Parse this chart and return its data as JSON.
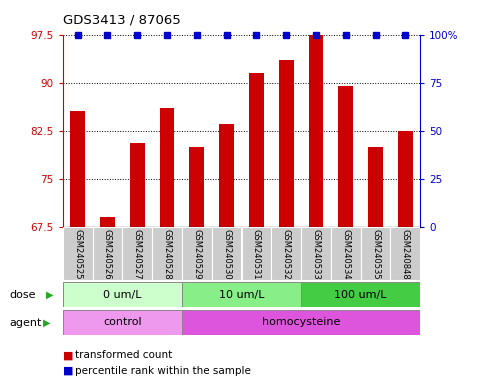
{
  "title": "GDS3413 / 87065",
  "samples": [
    "GSM240525",
    "GSM240526",
    "GSM240527",
    "GSM240528",
    "GSM240529",
    "GSM240530",
    "GSM240531",
    "GSM240532",
    "GSM240533",
    "GSM240534",
    "GSM240535",
    "GSM240848"
  ],
  "bar_values": [
    85.5,
    69.0,
    80.5,
    86.0,
    80.0,
    83.5,
    91.5,
    93.5,
    97.5,
    89.5,
    80.0,
    82.5
  ],
  "percentile_rank": [
    100,
    100,
    100,
    100,
    100,
    100,
    100,
    100,
    100,
    100,
    100,
    100
  ],
  "ylim": [
    67.5,
    97.5
  ],
  "yticks": [
    67.5,
    75.0,
    82.5,
    90.0,
    97.5
  ],
  "ytick_labels": [
    "67.5",
    "75",
    "82.5",
    "90",
    "97.5"
  ],
  "right_yticks": [
    0,
    25,
    50,
    75,
    100
  ],
  "right_ytick_labels": [
    "0",
    "25",
    "50",
    "75",
    "100%"
  ],
  "bar_color": "#cc0000",
  "dot_color": "#0000cc",
  "dose_groups": [
    {
      "label": "0 um/L",
      "start": 0,
      "end": 4,
      "color": "#ccffcc"
    },
    {
      "label": "10 um/L",
      "start": 4,
      "end": 8,
      "color": "#88ee88"
    },
    {
      "label": "100 um/L",
      "start": 8,
      "end": 12,
      "color": "#44cc44"
    }
  ],
  "agent_groups": [
    {
      "label": "control",
      "start": 0,
      "end": 4,
      "color": "#ee99ee"
    },
    {
      "label": "homocysteine",
      "start": 4,
      "end": 12,
      "color": "#dd55dd"
    }
  ],
  "legend_items": [
    {
      "color": "#cc0000",
      "label": "transformed count"
    },
    {
      "color": "#0000cc",
      "label": "percentile rank within the sample"
    }
  ],
  "dose_label": "dose",
  "agent_label": "agent",
  "left_axis_color": "#cc0000",
  "right_axis_color": "#0000cc",
  "sample_box_color": "#cccccc"
}
